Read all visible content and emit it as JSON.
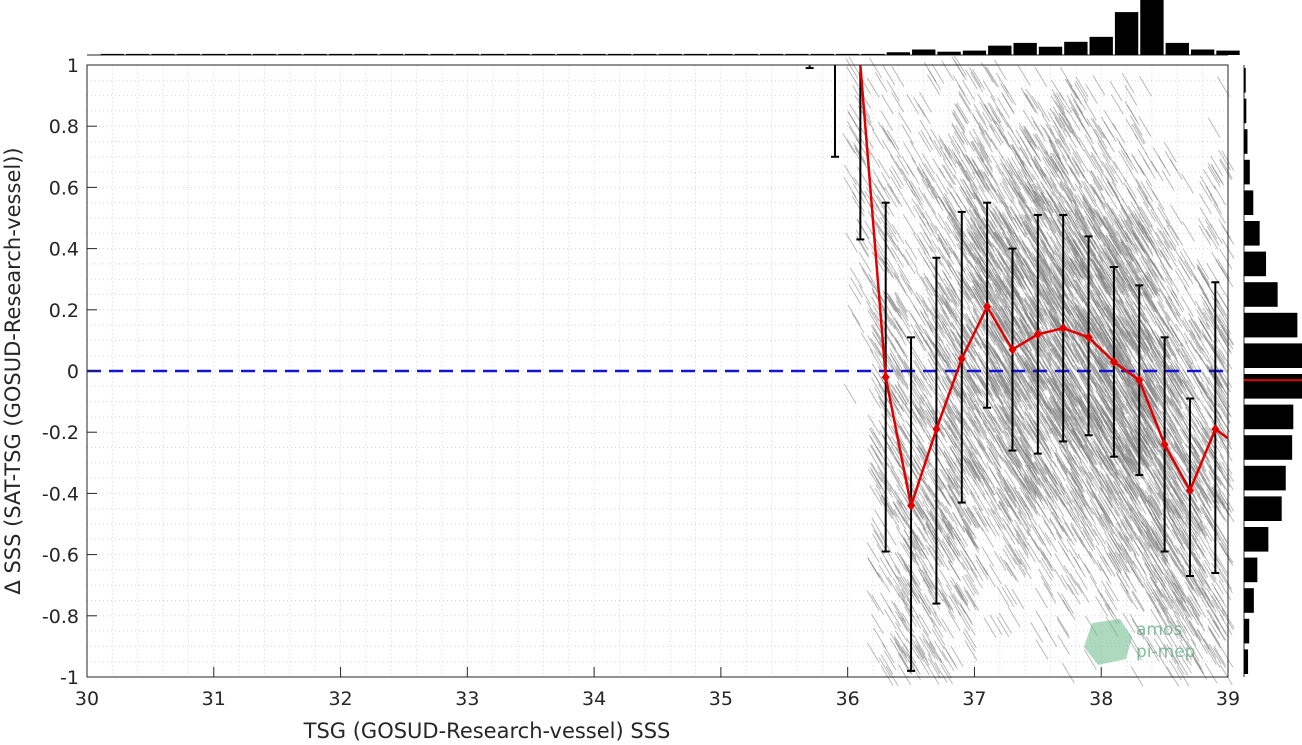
{
  "chart_data": {
    "type": "scatter",
    "xlabel": "TSG (GOSUD-Research-vessel) SSS",
    "ylabel": "Δ SSS (SAT-TSG (GOSUD-Research-vessel))",
    "xlim": [
      30,
      39
    ],
    "ylim": [
      -1,
      1
    ],
    "x_ticks": [
      "30",
      "31",
      "32",
      "33",
      "34",
      "35",
      "36",
      "37",
      "38",
      "39"
    ],
    "y_ticks": [
      "-1",
      "-0.8",
      "-0.6",
      "-0.4",
      "-0.2",
      "0",
      "0.2",
      "0.4",
      "0.6",
      "0.8",
      "1"
    ],
    "grid": true,
    "reference_line": {
      "y": 0,
      "style": "dashed",
      "color": "#1414d2"
    },
    "colors": {
      "scatter": "#808080",
      "mean_line": "#e00000",
      "error_bars": "#000000",
      "histograms": "#000000"
    },
    "mean_series": {
      "x": [
        36.1,
        36.3,
        36.5,
        36.7,
        36.9,
        37.1,
        37.3,
        37.5,
        37.7,
        37.9,
        38.1,
        38.3,
        38.5,
        38.7,
        38.9,
        39.0
      ],
      "y": [
        1.0,
        -0.02,
        -0.44,
        -0.19,
        0.04,
        0.21,
        0.07,
        0.12,
        0.14,
        0.11,
        0.03,
        -0.03,
        -0.24,
        -0.39,
        -0.19,
        -0.22
      ]
    },
    "error_bars": [
      {
        "x": 35.7,
        "low": 0.99,
        "high": 1.0
      },
      {
        "x": 35.9,
        "low": 0.7,
        "high": 1.0
      },
      {
        "x": 36.1,
        "low": 0.43,
        "high": 1.0
      },
      {
        "x": 36.3,
        "low": -0.59,
        "high": 0.55
      },
      {
        "x": 36.5,
        "low": -0.98,
        "high": 0.11
      },
      {
        "x": 36.7,
        "low": -0.76,
        "high": 0.37
      },
      {
        "x": 36.9,
        "low": -0.43,
        "high": 0.52
      },
      {
        "x": 37.1,
        "low": -0.12,
        "high": 0.55
      },
      {
        "x": 37.3,
        "low": -0.26,
        "high": 0.4
      },
      {
        "x": 37.5,
        "low": -0.27,
        "high": 0.51
      },
      {
        "x": 37.7,
        "low": -0.23,
        "high": 0.51
      },
      {
        "x": 37.9,
        "low": -0.21,
        "high": 0.44
      },
      {
        "x": 38.1,
        "low": -0.28,
        "high": 0.34
      },
      {
        "x": 38.3,
        "low": -0.34,
        "high": 0.28
      },
      {
        "x": 38.5,
        "low": -0.59,
        "high": 0.11
      },
      {
        "x": 38.7,
        "low": -0.67,
        "high": -0.09
      },
      {
        "x": 38.9,
        "low": -0.66,
        "high": 0.29
      }
    ],
    "hist_x": {
      "x": [
        30.2,
        30.4,
        30.6,
        30.8,
        31.0,
        31.2,
        31.4,
        31.6,
        31.8,
        32.0,
        32.2,
        32.4,
        32.6,
        32.8,
        33.0,
        33.2,
        33.4,
        33.6,
        33.8,
        34.0,
        34.2,
        34.4,
        34.6,
        34.8,
        35.0,
        35.2,
        35.4,
        35.6,
        35.8,
        36.0,
        36.2,
        36.4,
        36.6,
        36.8,
        37.0,
        37.2,
        37.4,
        37.6,
        37.8,
        38.0,
        38.2,
        38.4,
        38.6,
        38.8,
        39.0
      ],
      "counts": [
        0.02,
        0.02,
        0.02,
        0.02,
        0.02,
        0.02,
        0.02,
        0.02,
        0.02,
        0.02,
        0.02,
        0.02,
        0.02,
        0.02,
        0.02,
        0.02,
        0.02,
        0.02,
        0.02,
        0.02,
        0.02,
        0.02,
        0.02,
        0.02,
        0.02,
        0.02,
        0.02,
        0.02,
        0.02,
        0.02,
        0.02,
        0.05,
        0.1,
        0.06,
        0.08,
        0.17,
        0.22,
        0.15,
        0.24,
        0.33,
        0.78,
        1.0,
        0.22,
        0.1,
        0.08
      ]
    },
    "hist_y": {
      "y": [
        0.95,
        0.85,
        0.75,
        0.65,
        0.55,
        0.45,
        0.35,
        0.25,
        0.15,
        0.05,
        -0.05,
        -0.15,
        -0.25,
        -0.35,
        -0.45,
        -0.55,
        -0.65,
        -0.75,
        -0.85,
        -0.95
      ],
      "counts": [
        0.03,
        0.04,
        0.06,
        0.1,
        0.16,
        0.27,
        0.38,
        0.58,
        0.92,
        1.0,
        1.0,
        0.85,
        0.83,
        0.72,
        0.65,
        0.42,
        0.23,
        0.17,
        0.09,
        0.07
      ]
    },
    "scatter_bins": [
      {
        "x": 36.1,
        "count": 60,
        "y_center": 0.6,
        "spread": 0.3
      },
      {
        "x": 36.3,
        "count": 240,
        "y_center": -0.02,
        "spread": 0.58
      },
      {
        "x": 36.5,
        "count": 300,
        "y_center": -0.44,
        "spread": 0.56
      },
      {
        "x": 36.7,
        "count": 320,
        "y_center": -0.19,
        "spread": 0.58
      },
      {
        "x": 36.9,
        "count": 380,
        "y_center": 0.04,
        "spread": 0.5
      },
      {
        "x": 37.1,
        "count": 420,
        "y_center": 0.21,
        "spread": 0.4
      },
      {
        "x": 37.3,
        "count": 480,
        "y_center": 0.07,
        "spread": 0.38
      },
      {
        "x": 37.5,
        "count": 480,
        "y_center": 0.12,
        "spread": 0.4
      },
      {
        "x": 37.7,
        "count": 520,
        "y_center": 0.14,
        "spread": 0.4
      },
      {
        "x": 37.9,
        "count": 520,
        "y_center": 0.11,
        "spread": 0.38
      },
      {
        "x": 38.1,
        "count": 560,
        "y_center": 0.03,
        "spread": 0.36
      },
      {
        "x": 38.3,
        "count": 560,
        "y_center": -0.03,
        "spread": 0.36
      },
      {
        "x": 38.5,
        "count": 420,
        "y_center": -0.24,
        "spread": 0.4
      },
      {
        "x": 38.7,
        "count": 320,
        "y_center": -0.39,
        "spread": 0.38
      },
      {
        "x": 38.9,
        "count": 300,
        "y_center": -0.19,
        "spread": 0.45
      }
    ]
  },
  "logo": {
    "line1": "amos",
    "line2": "pi-mep"
  }
}
